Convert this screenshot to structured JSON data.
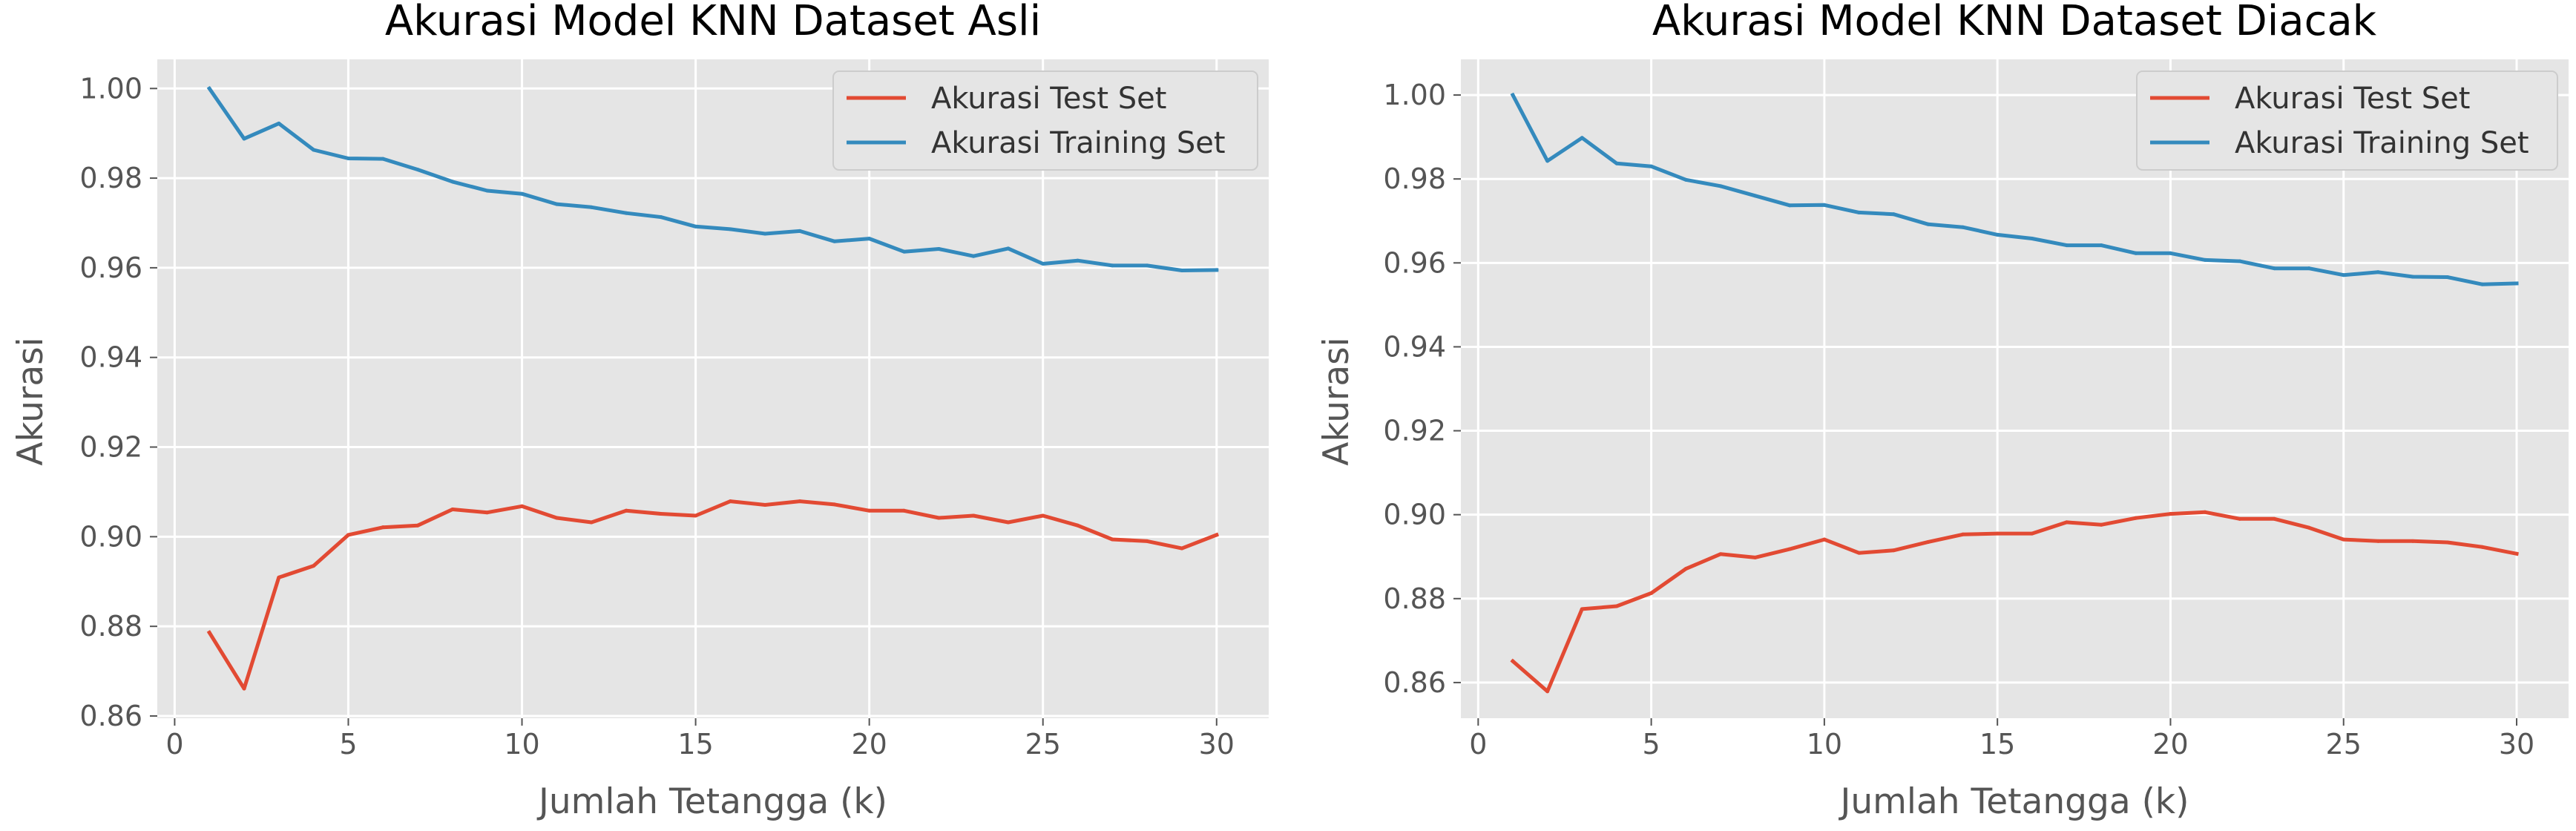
{
  "chart_data": [
    {
      "type": "line",
      "title": "Akurasi Model KNN Dataset Asli",
      "xlabel": "Jumlah Tetangga (k)",
      "ylabel": "Akurasi",
      "xlim": [
        -0.5,
        31.5
      ],
      "ylim": [
        0.8595,
        1.0065
      ],
      "xticks": [
        0,
        5,
        10,
        15,
        20,
        25,
        30
      ],
      "yticks": [
        0.86,
        0.88,
        0.9,
        0.92,
        0.94,
        0.96,
        0.98,
        1.0
      ],
      "xtick_labels": [
        "0",
        "5",
        "10",
        "15",
        "20",
        "25",
        "30"
      ],
      "ytick_labels": [
        "0.86",
        "0.88",
        "0.90",
        "0.92",
        "0.94",
        "0.96",
        "0.98",
        "1.00"
      ],
      "grid": true,
      "legend_position": "top-right",
      "x": [
        1,
        2,
        3,
        4,
        5,
        6,
        7,
        8,
        9,
        10,
        11,
        12,
        13,
        14,
        15,
        16,
        17,
        18,
        19,
        20,
        21,
        22,
        23,
        24,
        25,
        26,
        27,
        28,
        29,
        30
      ],
      "series": [
        {
          "name": "Akurasi Test Set",
          "color": "#E24A33",
          "values": [
            0.8786,
            0.8661,
            0.8909,
            0.8935,
            0.9004,
            0.9021,
            0.9025,
            0.9061,
            0.9054,
            0.9068,
            0.9042,
            0.9032,
            0.9058,
            0.9051,
            0.9047,
            0.9079,
            0.9071,
            0.9079,
            0.9072,
            0.9058,
            0.9058,
            0.9042,
            0.9047,
            0.9032,
            0.9047,
            0.9025,
            0.8994,
            0.899,
            0.8974,
            0.9004
          ]
        },
        {
          "name": "Akurasi Training Set",
          "color": "#348ABD",
          "values": [
            1.0,
            0.9888,
            0.9922,
            0.9863,
            0.9844,
            0.9843,
            0.9819,
            0.9792,
            0.9772,
            0.9765,
            0.9742,
            0.9735,
            0.9722,
            0.9713,
            0.9692,
            0.9686,
            0.9676,
            0.9682,
            0.9659,
            0.9665,
            0.9636,
            0.9642,
            0.9626,
            0.9643,
            0.9609,
            0.9616,
            0.9605,
            0.9605,
            0.9594,
            0.9595
          ]
        }
      ]
    },
    {
      "type": "line",
      "title": "Akurasi Model KNN Dataset Diacak",
      "xlabel": "Jumlah Tetangga (k)",
      "ylabel": "Akurasi",
      "xlim": [
        -0.5,
        31.5
      ],
      "ylim": [
        0.8515,
        1.0085
      ],
      "xticks": [
        0,
        5,
        10,
        15,
        20,
        25,
        30
      ],
      "yticks": [
        0.86,
        0.88,
        0.9,
        0.92,
        0.94,
        0.96,
        0.98,
        1.0
      ],
      "xtick_labels": [
        "0",
        "5",
        "10",
        "15",
        "20",
        "25",
        "30"
      ],
      "ytick_labels": [
        "0.86",
        "0.88",
        "0.90",
        "0.92",
        "0.94",
        "0.96",
        "0.98",
        "1.00"
      ],
      "grid": true,
      "legend_position": "top-right",
      "x": [
        1,
        2,
        3,
        4,
        5,
        6,
        7,
        8,
        9,
        10,
        11,
        12,
        13,
        14,
        15,
        16,
        17,
        18,
        19,
        20,
        21,
        22,
        23,
        24,
        25,
        26,
        27,
        28,
        29,
        30
      ],
      "series": [
        {
          "name": "Akurasi Test Set",
          "color": "#E24A33",
          "values": [
            0.8651,
            0.8579,
            0.8775,
            0.8782,
            0.8813,
            0.8871,
            0.8906,
            0.8898,
            0.8918,
            0.8941,
            0.8909,
            0.8915,
            0.8935,
            0.8953,
            0.8955,
            0.8955,
            0.8982,
            0.8976,
            0.8992,
            0.9002,
            0.9006,
            0.899,
            0.899,
            0.8969,
            0.8941,
            0.8937,
            0.8937,
            0.8934,
            0.8923,
            0.8907
          ]
        },
        {
          "name": "Akurasi Training Set",
          "color": "#348ABD",
          "values": [
            1.0,
            0.9843,
            0.9898,
            0.9837,
            0.983,
            0.9798,
            0.9783,
            0.976,
            0.9737,
            0.9738,
            0.972,
            0.9716,
            0.9692,
            0.9685,
            0.9667,
            0.9658,
            0.9642,
            0.9642,
            0.9623,
            0.9623,
            0.9607,
            0.9604,
            0.9587,
            0.9587,
            0.9571,
            0.9578,
            0.9567,
            0.9566,
            0.9549,
            0.9551
          ]
        }
      ]
    }
  ]
}
